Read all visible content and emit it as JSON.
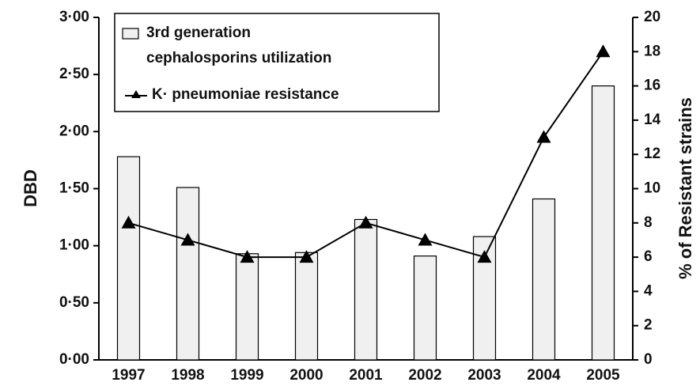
{
  "chart_data": {
    "type": "bar+line",
    "categories": [
      "1997",
      "1998",
      "1999",
      "2000",
      "2001",
      "2002",
      "2003",
      "2004",
      "2005"
    ],
    "series": [
      {
        "name": "3rd generation cephalosporins utilization",
        "type": "bar",
        "color": "#f0f0f0",
        "values": [
          1.78,
          1.51,
          0.93,
          0.94,
          1.23,
          0.91,
          1.08,
          1.41,
          2.4
        ]
      },
      {
        "name": "K· pneumoniae resistance",
        "type": "line",
        "axis": "y2",
        "color": "#000000",
        "values": [
          8,
          7,
          6,
          6,
          8,
          7,
          6,
          13,
          18
        ]
      }
    ],
    "ylabel": "DBD",
    "y2label": "% of Resistant strains",
    "ylim": [
      0,
      3
    ],
    "yticks": [
      {
        "value": 0,
        "label": "0·00"
      },
      {
        "value": 0.5,
        "label": "0·50"
      },
      {
        "value": 1,
        "label": "1·00"
      },
      {
        "value": 1.5,
        "label": "1·50"
      },
      {
        "value": 2,
        "label": "2·00"
      },
      {
        "value": 2.5,
        "label": "2·50"
      },
      {
        "value": 3,
        "label": "3·00"
      }
    ],
    "y2lim": [
      0,
      20
    ],
    "y2ticks": [
      0,
      2,
      4,
      6,
      8,
      10,
      12,
      14,
      16,
      18,
      20
    ],
    "legend": "upper left"
  }
}
